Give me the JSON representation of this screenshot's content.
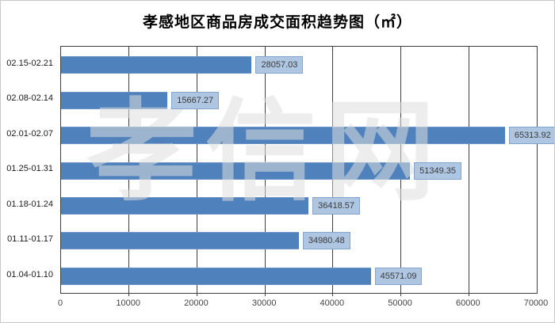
{
  "title": "孝感地区商品房成交面积趋势图（㎡）",
  "watermark": {
    "text": "孝信网"
  },
  "colors": {
    "bar": "#4f81bd",
    "bar_edge": "#6a94c6",
    "value_label_bg": "#aec6e2",
    "value_label_border": "#83a5cc",
    "value_label_text": "#3a3a3a",
    "grid": "#3f3f3f",
    "axis_text": "#444444",
    "category_text": "#1a1a1a"
  },
  "chart_data": {
    "type": "bar",
    "orientation": "horizontal",
    "title": "孝感地区商品房成交面积趋势图（㎡）",
    "categories": [
      "02.15-02.21",
      "02.08-02.14",
      "02.01-02.07",
      "01.25-01.31",
      "01.18-01.24",
      "01.11-01.17",
      "01.04-01.10"
    ],
    "values": [
      28057.03,
      15667.27,
      65313.92,
      51349.35,
      36418.57,
      34980.48,
      45571.09
    ],
    "data_labels": [
      "28057.03",
      "15667.27",
      "65313.92",
      "51349.35",
      "36418.57",
      "34980.48",
      "45571.09"
    ],
    "x_ticks": [
      0,
      10000,
      20000,
      30000,
      40000,
      50000,
      60000,
      70000
    ],
    "xlim": [
      0,
      70000
    ],
    "xlabel": "",
    "ylabel": "",
    "grid": true,
    "legend": false
  }
}
